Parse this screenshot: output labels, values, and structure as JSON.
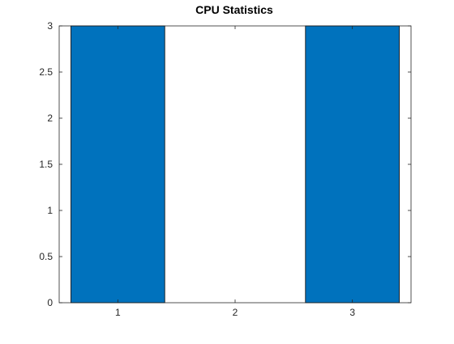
{
  "chart_data": {
    "type": "bar",
    "title": "CPU Statistics",
    "xlabel": "",
    "ylabel": "",
    "categories": [
      "1",
      "2",
      "3"
    ],
    "values": [
      3,
      0,
      3
    ],
    "xlim": [
      0.5,
      3.5
    ],
    "ylim": [
      0,
      3
    ],
    "yticks": [
      0,
      0.5,
      1,
      1.5,
      2,
      2.5,
      3
    ],
    "ytick_labels": [
      "0",
      "0.5",
      "1",
      "1.5",
      "2",
      "2.5",
      "3"
    ],
    "bar_color": "#0072BD",
    "grid": false,
    "legend": "none"
  }
}
